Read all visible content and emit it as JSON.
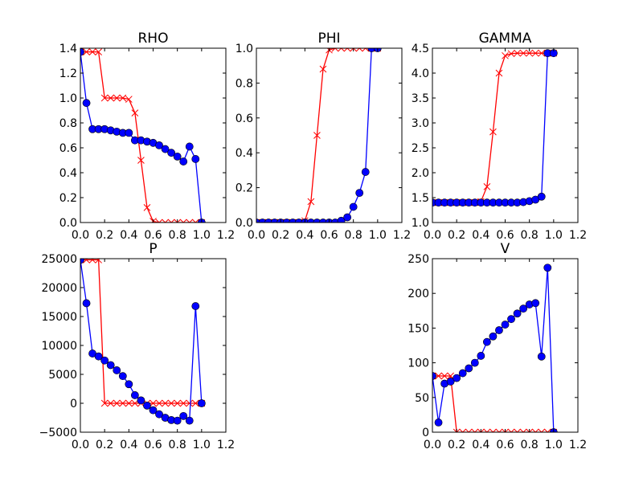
{
  "chart_data": [
    {
      "type": "line",
      "title": "RHO",
      "xlim": [
        0,
        1.2
      ],
      "ylim": [
        0,
        1.4
      ],
      "xticks": [
        0.0,
        0.2,
        0.4,
        0.6,
        0.8,
        1.0,
        1.2
      ],
      "xtick_labels": [
        "0.0",
        "0.2",
        "0.4",
        "0.6",
        "0.8",
        "1.0",
        "1.2"
      ],
      "yticks": [
        0.0,
        0.2,
        0.4,
        0.6,
        0.8,
        1.0,
        1.2,
        1.4
      ],
      "ytick_labels": [
        "0.0",
        "0.2",
        "0.4",
        "0.6",
        "0.8",
        "1.0",
        "1.2",
        "1.4"
      ],
      "grid": false,
      "series": [
        {
          "marker": "x",
          "color": "#ff0000",
          "x": [
            0,
            0.05,
            0.1,
            0.15,
            0.2,
            0.25,
            0.3,
            0.35,
            0.4,
            0.45,
            0.5,
            0.55,
            0.6,
            0.65,
            0.7,
            0.75,
            0.8,
            0.85,
            0.9,
            0.95,
            1.0
          ],
          "y": [
            1.37,
            1.37,
            1.37,
            1.37,
            1.0,
            1.0,
            1.0,
            1.0,
            0.99,
            0.88,
            0.5,
            0.12,
            0.01,
            0.0,
            0.0,
            0.0,
            0.0,
            0.0,
            0.0,
            0.0,
            0.0
          ]
        },
        {
          "marker": "circle",
          "color": "#0000ff",
          "x": [
            0,
            0.05,
            0.1,
            0.15,
            0.2,
            0.25,
            0.3,
            0.35,
            0.4,
            0.45,
            0.5,
            0.55,
            0.6,
            0.65,
            0.7,
            0.75,
            0.8,
            0.85,
            0.9,
            0.95,
            1.0
          ],
          "y": [
            1.37,
            0.96,
            0.75,
            0.75,
            0.75,
            0.74,
            0.73,
            0.72,
            0.72,
            0.66,
            0.66,
            0.65,
            0.64,
            0.62,
            0.59,
            0.56,
            0.53,
            0.49,
            0.61,
            0.51,
            0.0
          ]
        }
      ]
    },
    {
      "type": "line",
      "title": "PHI",
      "xlim": [
        0,
        1.2
      ],
      "ylim": [
        0,
        1.0
      ],
      "xticks": [
        0.0,
        0.2,
        0.4,
        0.6,
        0.8,
        1.0,
        1.2
      ],
      "xtick_labels": [
        "0.0",
        "0.2",
        "0.4",
        "0.6",
        "0.8",
        "1.0",
        "1.2"
      ],
      "yticks": [
        0.0,
        0.2,
        0.4,
        0.6,
        0.8,
        1.0
      ],
      "ytick_labels": [
        "0.0",
        "0.2",
        "0.4",
        "0.6",
        "0.8",
        "1.0"
      ],
      "grid": false,
      "series": [
        {
          "marker": "x",
          "color": "#ff0000",
          "x": [
            0,
            0.05,
            0.1,
            0.15,
            0.2,
            0.25,
            0.3,
            0.35,
            0.4,
            0.45,
            0.5,
            0.55,
            0.6,
            0.65,
            0.7,
            0.75,
            0.8,
            0.85,
            0.9,
            0.95,
            1.0
          ],
          "y": [
            0.0,
            0.0,
            0.0,
            0.0,
            0.0,
            0.0,
            0.0,
            0.0,
            0.01,
            0.12,
            0.5,
            0.88,
            0.99,
            1.0,
            1.0,
            1.0,
            1.0,
            1.0,
            1.0,
            1.0,
            1.0
          ]
        },
        {
          "marker": "circle",
          "color": "#0000ff",
          "x": [
            0,
            0.05,
            0.1,
            0.15,
            0.2,
            0.25,
            0.3,
            0.35,
            0.4,
            0.45,
            0.5,
            0.55,
            0.6,
            0.65,
            0.7,
            0.75,
            0.8,
            0.85,
            0.9,
            0.95,
            1.0
          ],
          "y": [
            0.0,
            0.0,
            0.0,
            0.0,
            0.0,
            0.0,
            0.0,
            0.0,
            0.0,
            0.0,
            0.0,
            0.0,
            0.0,
            0.0,
            0.01,
            0.03,
            0.09,
            0.17,
            0.29,
            1.0,
            1.0
          ]
        }
      ]
    },
    {
      "type": "line",
      "title": "GAMMA",
      "xlim": [
        0,
        1.2
      ],
      "ylim": [
        1.0,
        4.5
      ],
      "xticks": [
        0.0,
        0.2,
        0.4,
        0.6,
        0.8,
        1.0,
        1.2
      ],
      "xtick_labels": [
        "0.0",
        "0.2",
        "0.4",
        "0.6",
        "0.8",
        "1.0",
        "1.2"
      ],
      "yticks": [
        1.0,
        1.5,
        2.0,
        2.5,
        3.0,
        3.5,
        4.0,
        4.5
      ],
      "ytick_labels": [
        "1.0",
        "1.5",
        "2.0",
        "2.5",
        "3.0",
        "3.5",
        "4.0",
        "4.5"
      ],
      "grid": false,
      "series": [
        {
          "marker": "x",
          "color": "#ff0000",
          "x": [
            0,
            0.05,
            0.1,
            0.15,
            0.2,
            0.25,
            0.3,
            0.35,
            0.4,
            0.45,
            0.5,
            0.55,
            0.6,
            0.65,
            0.7,
            0.75,
            0.8,
            0.85,
            0.9,
            0.95,
            1.0
          ],
          "y": [
            1.4,
            1.4,
            1.4,
            1.4,
            1.4,
            1.4,
            1.4,
            1.4,
            1.42,
            1.72,
            2.82,
            4.0,
            4.35,
            4.39,
            4.4,
            4.4,
            4.4,
            4.4,
            4.4,
            4.4,
            4.4
          ]
        },
        {
          "marker": "circle",
          "color": "#0000ff",
          "x": [
            0,
            0.05,
            0.1,
            0.15,
            0.2,
            0.25,
            0.3,
            0.35,
            0.4,
            0.45,
            0.5,
            0.55,
            0.6,
            0.65,
            0.7,
            0.75,
            0.8,
            0.85,
            0.9,
            0.95,
            1.0
          ],
          "y": [
            1.4,
            1.4,
            1.4,
            1.4,
            1.4,
            1.4,
            1.4,
            1.4,
            1.4,
            1.4,
            1.4,
            1.4,
            1.4,
            1.4,
            1.4,
            1.41,
            1.43,
            1.46,
            1.52,
            4.4,
            4.4
          ]
        }
      ]
    },
    {
      "type": "line",
      "title": "P",
      "xlim": [
        0,
        1.2
      ],
      "ylim": [
        -5000,
        25000
      ],
      "xticks": [
        0.0,
        0.2,
        0.4,
        0.6,
        0.8,
        1.0,
        1.2
      ],
      "xtick_labels": [
        "0.0",
        "0.2",
        "0.4",
        "0.6",
        "0.8",
        "1.0",
        "1.2"
      ],
      "yticks": [
        -5000,
        0,
        5000,
        10000,
        15000,
        20000,
        25000
      ],
      "ytick_labels": [
        "−5000",
        "0",
        "5000",
        "10000",
        "15000",
        "20000",
        "25000"
      ],
      "grid": false,
      "series": [
        {
          "marker": "x",
          "color": "#ff0000",
          "x": [
            0,
            0.05,
            0.1,
            0.15,
            0.2,
            0.25,
            0.3,
            0.35,
            0.4,
            0.45,
            0.5,
            0.55,
            0.6,
            0.65,
            0.7,
            0.75,
            0.8,
            0.85,
            0.9,
            0.95,
            1.0
          ],
          "y": [
            24800,
            24800,
            24800,
            24800,
            0,
            0,
            0,
            0,
            0,
            0,
            0,
            0,
            0,
            0,
            0,
            0,
            0,
            0,
            0,
            0,
            0
          ]
        },
        {
          "marker": "circle",
          "color": "#0000ff",
          "x": [
            0,
            0.05,
            0.1,
            0.15,
            0.2,
            0.25,
            0.3,
            0.35,
            0.4,
            0.45,
            0.5,
            0.55,
            0.6,
            0.65,
            0.7,
            0.75,
            0.8,
            0.85,
            0.9,
            0.95,
            1.0
          ],
          "y": [
            24800,
            17300,
            8600,
            8100,
            7400,
            6600,
            5700,
            4700,
            3300,
            1400,
            500,
            -400,
            -1200,
            -1900,
            -2500,
            -2900,
            -3000,
            -2200,
            -3000,
            16800,
            0
          ]
        }
      ]
    },
    {
      "type": "line",
      "title": "V",
      "xlim": [
        0,
        1.2
      ],
      "ylim": [
        0,
        250
      ],
      "xticks": [
        0.0,
        0.2,
        0.4,
        0.6,
        0.8,
        1.0,
        1.2
      ],
      "xtick_labels": [
        "0.0",
        "0.2",
        "0.4",
        "0.6",
        "0.8",
        "1.0",
        "1.2"
      ],
      "yticks": [
        0,
        50,
        100,
        150,
        200,
        250
      ],
      "ytick_labels": [
        "0",
        "50",
        "100",
        "150",
        "200",
        "250"
      ],
      "grid": false,
      "series": [
        {
          "marker": "x",
          "color": "#ff0000",
          "x": [
            0,
            0.05,
            0.1,
            0.15,
            0.2,
            0.25,
            0.3,
            0.35,
            0.4,
            0.45,
            0.5,
            0.55,
            0.6,
            0.65,
            0.7,
            0.75,
            0.8,
            0.85,
            0.9,
            0.95,
            1.0
          ],
          "y": [
            81,
            81,
            81,
            81,
            0,
            0,
            0,
            0,
            0,
            0,
            0,
            0,
            0,
            0,
            0,
            0,
            0,
            0,
            0,
            0,
            0
          ]
        },
        {
          "marker": "circle",
          "color": "#0000ff",
          "x": [
            0,
            0.05,
            0.1,
            0.15,
            0.2,
            0.25,
            0.3,
            0.35,
            0.4,
            0.45,
            0.5,
            0.55,
            0.6,
            0.65,
            0.7,
            0.75,
            0.8,
            0.85,
            0.9,
            0.95,
            1.0
          ],
          "y": [
            81,
            14,
            70,
            73,
            78,
            85,
            92,
            100,
            110,
            130,
            138,
            147,
            155,
            163,
            171,
            178,
            184,
            186,
            109,
            237,
            0
          ]
        }
      ]
    }
  ]
}
